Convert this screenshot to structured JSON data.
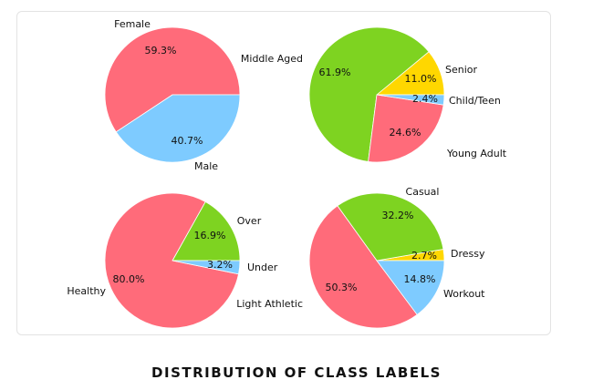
{
  "caption": "DISTRIBUTION OF CLASS LABELS",
  "chart_data": [
    {
      "type": "pie",
      "slices": [
        {
          "label": "Female",
          "value": 59.3,
          "pct_label": "59.3%",
          "color": "#ff6b7a"
        },
        {
          "label": "Male",
          "value": 40.7,
          "pct_label": "40.7%",
          "color": "#7ecbff"
        }
      ]
    },
    {
      "type": "pie",
      "slices": [
        {
          "label": "Senior",
          "value": 11.0,
          "pct_label": "11.0%",
          "color": "#ffd700"
        },
        {
          "label": "Middle Aged",
          "value": 61.9,
          "pct_label": "61.9%",
          "color": "#7ed321"
        },
        {
          "label": "Young Adult",
          "value": 24.6,
          "pct_label": "24.6%",
          "color": "#ff6b7a"
        },
        {
          "label": "Child/Teen",
          "value": 2.4,
          "pct_label": "2.4%",
          "color": "#7ecbff"
        }
      ]
    },
    {
      "type": "pie",
      "slices": [
        {
          "label": "Over",
          "value": 16.9,
          "pct_label": "16.9%",
          "color": "#7ed321"
        },
        {
          "label": "Healthy",
          "value": 80.0,
          "pct_label": "80.0%",
          "color": "#ff6b7a"
        },
        {
          "label": "Under",
          "value": 3.2,
          "pct_label": "3.2%",
          "color": "#7ecbff"
        }
      ]
    },
    {
      "type": "pie",
      "slices": [
        {
          "label": "Dressy",
          "value": 2.7,
          "pct_label": "2.7%",
          "color": "#ffd700"
        },
        {
          "label": "Casual",
          "value": 32.2,
          "pct_label": "32.2%",
          "color": "#7ed321"
        },
        {
          "label": "Light Athletic",
          "value": 50.3,
          "pct_label": "50.3%",
          "color": "#ff6b7a"
        },
        {
          "label": "Workout",
          "value": 14.8,
          "pct_label": "14.8%",
          "color": "#7ecbff"
        }
      ]
    }
  ]
}
